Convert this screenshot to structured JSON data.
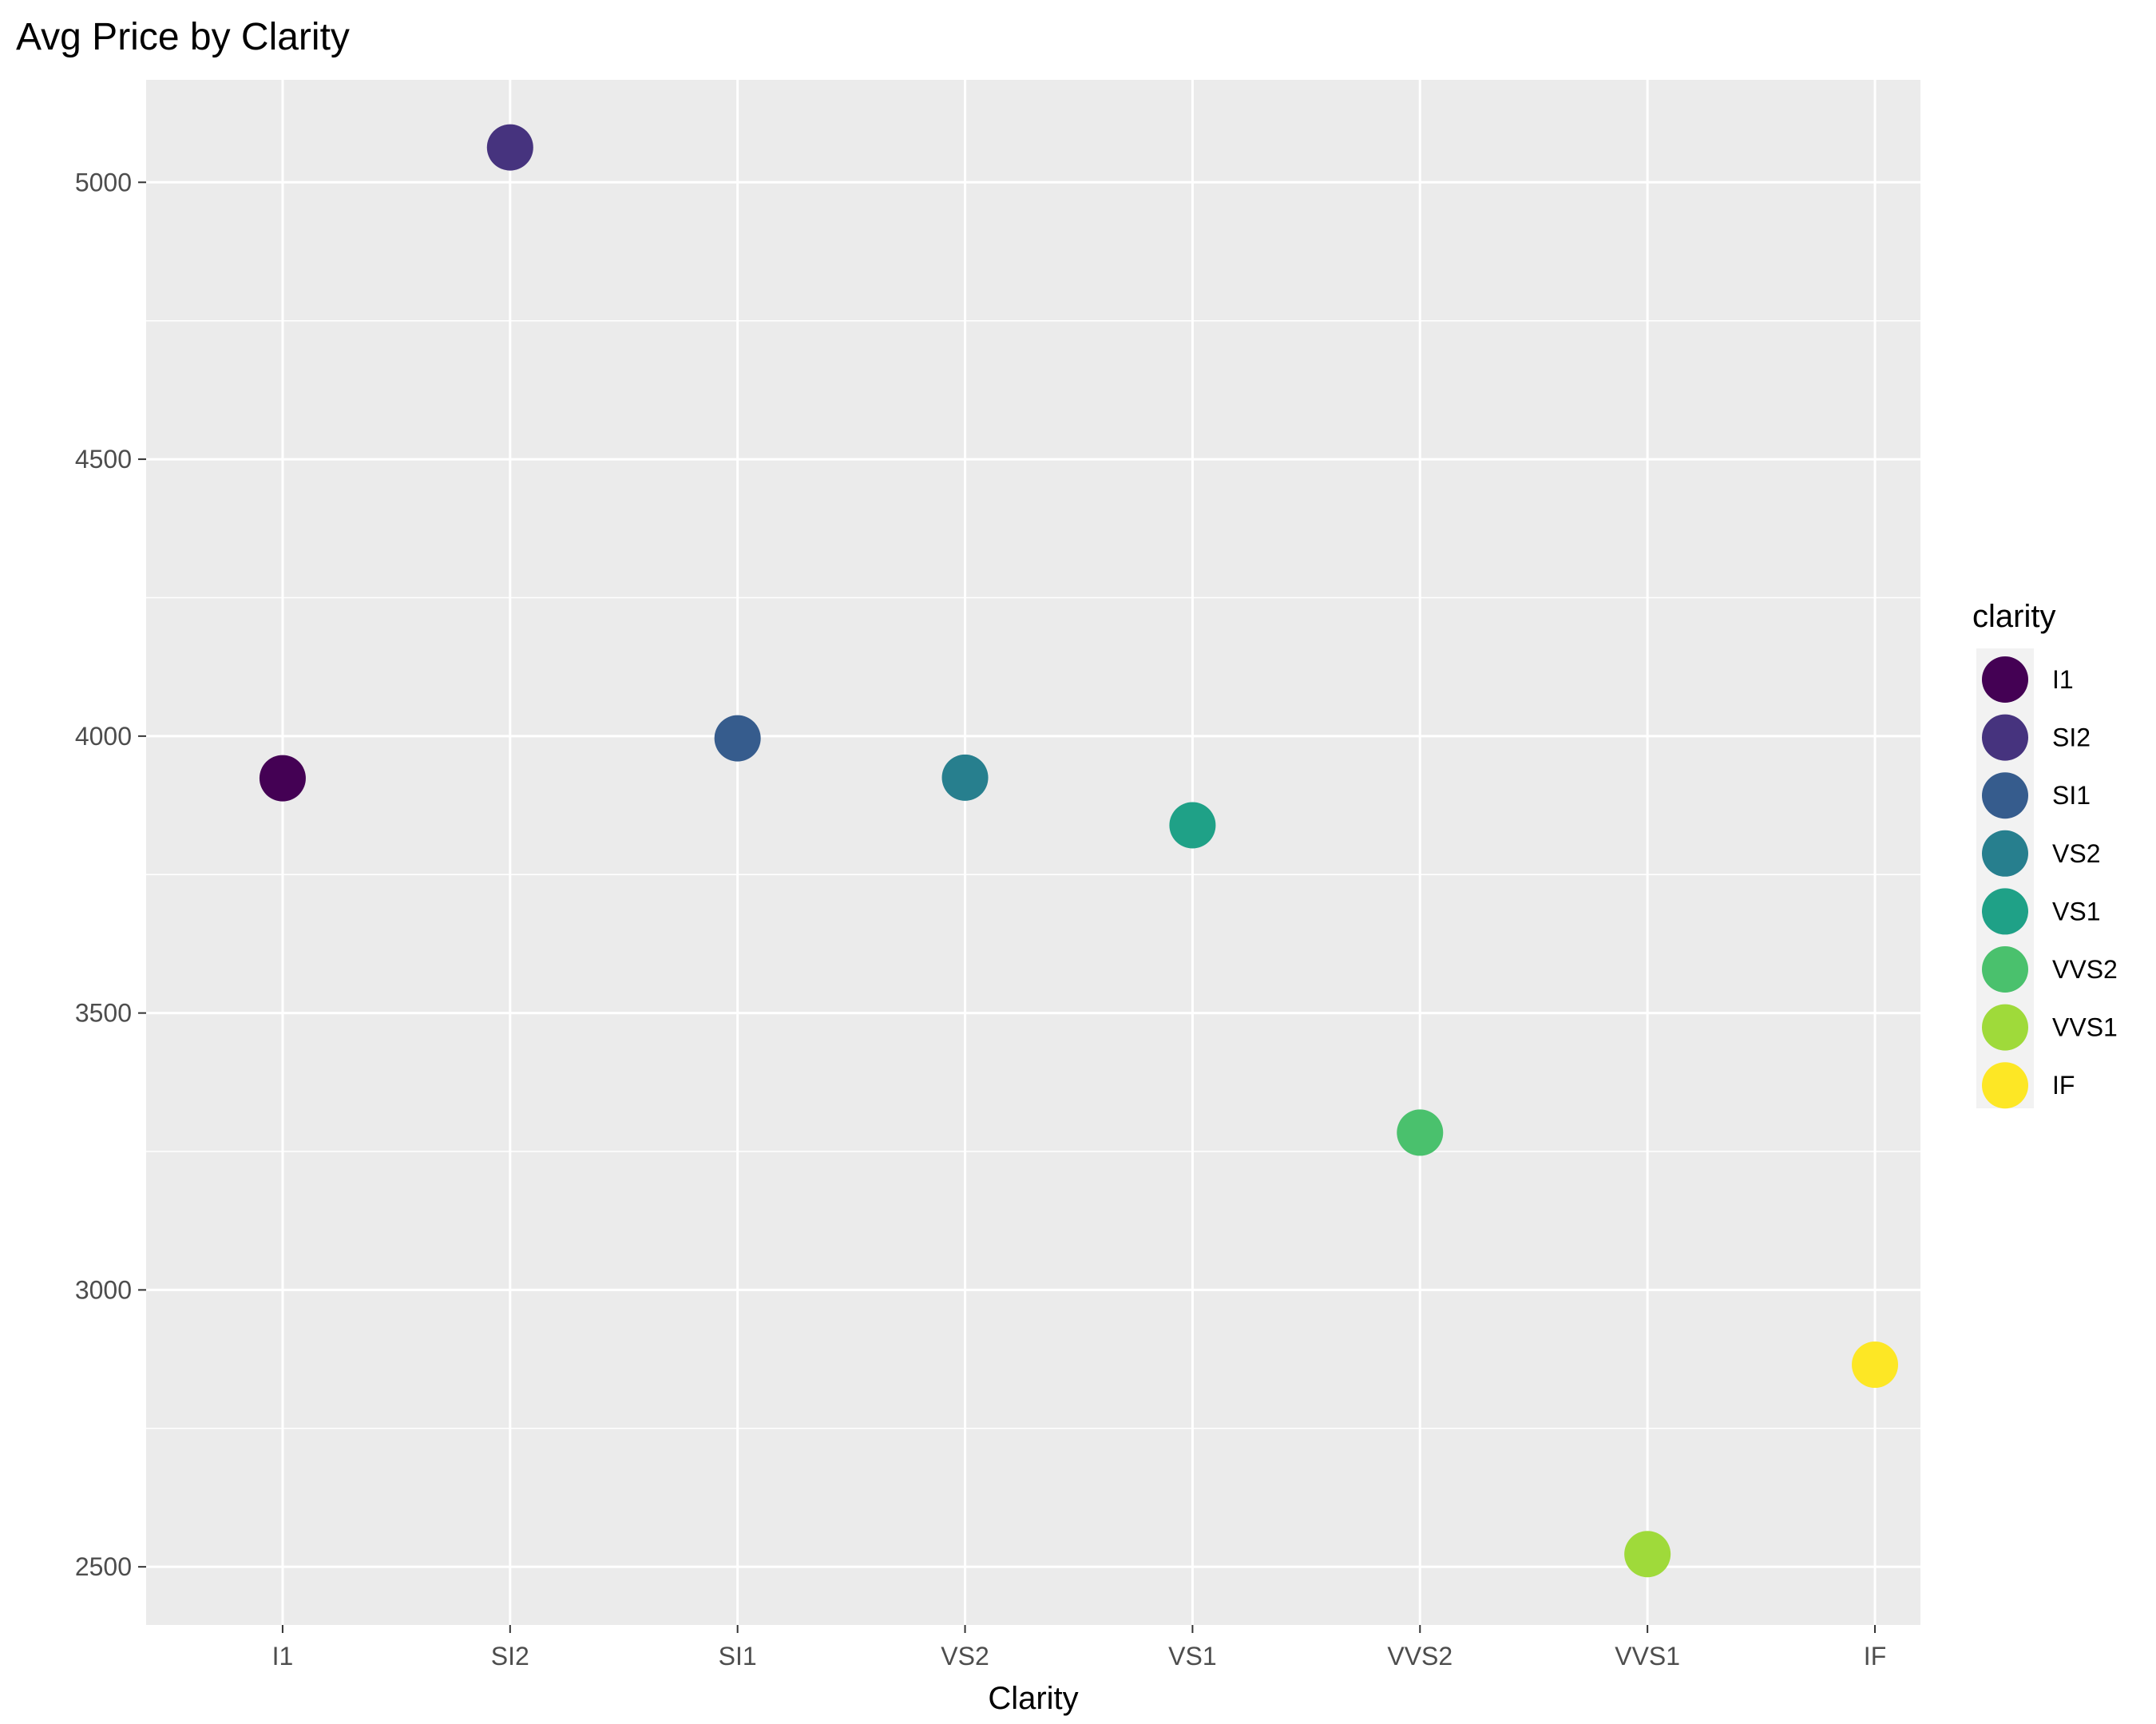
{
  "chart_data": {
    "type": "scatter",
    "title": "Avg Price by Clarity",
    "xlabel": "Clarity",
    "ylabel": "",
    "categories": [
      "I1",
      "SI2",
      "SI1",
      "VS2",
      "VS1",
      "VVS2",
      "VVS1",
      "IF"
    ],
    "values": [
      3924,
      5063,
      3996,
      3925,
      3839,
      3284,
      2523,
      2865
    ],
    "colors": [
      "#440154",
      "#46337E",
      "#365C8D",
      "#277F8E",
      "#1FA187",
      "#4AC16D",
      "#9FDA3A",
      "#FDE725"
    ],
    "ylim": [
      2395,
      5185
    ],
    "yticks": [
      2500,
      3000,
      3500,
      4000,
      4500,
      5000
    ],
    "grid": true,
    "legend": {
      "title": "clarity",
      "placement": "right",
      "entries": [
        "I1",
        "SI2",
        "SI1",
        "VS2",
        "VS1",
        "VVS2",
        "VVS1",
        "IF"
      ]
    }
  }
}
